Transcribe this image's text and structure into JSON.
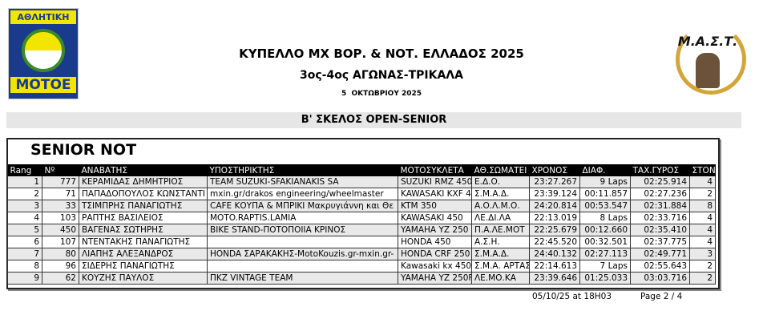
{
  "header": {
    "title": "ΚΥΠΕΛΛΟ MX ΒΟΡ. & ΝΟΤ. ΕΛΛΑΔΟΣ 2025",
    "subtitle": "3ος-4ος ΑΓΩΝΑΣ-ΤΡΙΚΑΛΑ",
    "date": "5  ΟΚΤΩΒΡΙΟΥ 2025"
  },
  "logos": {
    "left": "ΑΘΛΗΤΙΚΗ ΜΟΤΟΕ",
    "right": "Μ.Α.Σ.Τ."
  },
  "section": "Β' ΣΚΕΛΟΣ OPEN-SENIOR",
  "category": "SENIOR NOT",
  "columns": [
    "Rang",
    "Nº",
    "ΑΝΑΒΑΤΗΣ",
    "ΥΠΟΣΤΗΡΙΚΤΗΣ",
    "ΜΟΤΟΣΥΚΛΕΤΑ",
    "ΑΘ.ΣΩΜΑΤΕΙ",
    "ΧΡΟΝΟΣ",
    "ΔΙΑΦ.",
    "ΤΑΧ.ΓΥΡΟΣ",
    "ΣΤΟΝ"
  ],
  "rows": [
    [
      "1",
      "777",
      "ΚΕΡΑΜΙΔΑΣ ΔΗΜΗΤΡΙΟΣ",
      "TEAM SUZUKI-SFAKIANAKIS SA",
      "SUZUKI RMZ 450",
      "Ε.Δ.Ο.",
      "23:27.267",
      "9 Laps",
      "02:25.914",
      "4"
    ],
    [
      "2",
      "71",
      "ΠΑΠΑΔΟΠΟΥΛΟΣ ΚΩΝΣΤΑΝΤΙ",
      "mxin.gr/drakos engineering/wheelmaster",
      "KAWASAKI KXF 4",
      "Σ.Μ.Α.Δ.",
      "23:39.124",
      "00:11.857",
      "02:27.236",
      "2"
    ],
    [
      "3",
      "33",
      "ΤΣΙΜΠΡΗΣ ΠΑΝΑΓΙΩΤΗΣ",
      "CAFE ΚΟΥΠΑ & ΜΠΡΙΚΙ Μακρυγιάννη και Θε",
      "KTM 350",
      "Α.Ο.Λ.Μ.Ο.",
      "24:20.814",
      "00:53.547",
      "02:31.884",
      "8"
    ],
    [
      "4",
      "103",
      "ΡΑΠΤΗΣ ΒΑΣΙΛΕΙΟΣ",
      "MOTO.RAPTIS.LAMIA",
      "KAWASAKI 450",
      "ΛΕ.ΔΙ.ΛΑ",
      "22:13.019",
      "8 Laps",
      "02:33.716",
      "4"
    ],
    [
      "5",
      "450",
      "ΒΑΓΕΝΑΣ ΣΩΤΗΡΗΣ",
      "BIKE STAND-ΠΟΤΟΠΟΙΙΑ ΚΡΙΝΟΣ",
      "YAMAHA YZ 250",
      "Π.Α.ΛΕ.ΜΟΤ",
      "22:25.679",
      "00:12.660",
      "02:35.410",
      "4"
    ],
    [
      "6",
      "107",
      "ΝΤΕΝΤΑΚΗΣ ΠΑΝΑΓΙΩΤΗΣ",
      "",
      "HONDA 450",
      "Α.Σ.Η.",
      "22:45.520",
      "00:32.501",
      "02:37.775",
      "4"
    ],
    [
      "7",
      "80",
      "ΛΙΑΠΗΣ ΑΛΕΞΑΝΔΡΟΣ",
      "HONDA ΣΑΡΑΚΑΚΗΣ-MotoKouzis.gr-mxin.gr-",
      "HONDA CRF 250",
      "Σ.Μ.Α.Δ.",
      "24:40.132",
      "02:27.113",
      "02:49.771",
      "3"
    ],
    [
      "8",
      "96",
      "ΣΙΔΕΡΗΣ ΠΑΝΑΓΙΩΤΗΣ",
      "",
      "Kawasaki kx 450",
      "Σ.Μ.Α. ΑΡΤΑΣ",
      "22:14.613",
      "7 Laps",
      "02:55.643",
      "2"
    ],
    [
      "9",
      "62",
      "ΚΟΥΖΗΣ ΠΑΥΛΟΣ",
      "ΠΚΖ VINTAGE TEAM",
      "YAMAHA YZ 250F",
      "ΛΕ.ΜΟ.ΚΑ",
      "23:39.646",
      "01:25.033",
      "03:03.716",
      "2"
    ]
  ],
  "footer": {
    "timestamp": "05/10/25 at 18H03",
    "page": "Page 2 / 4"
  }
}
